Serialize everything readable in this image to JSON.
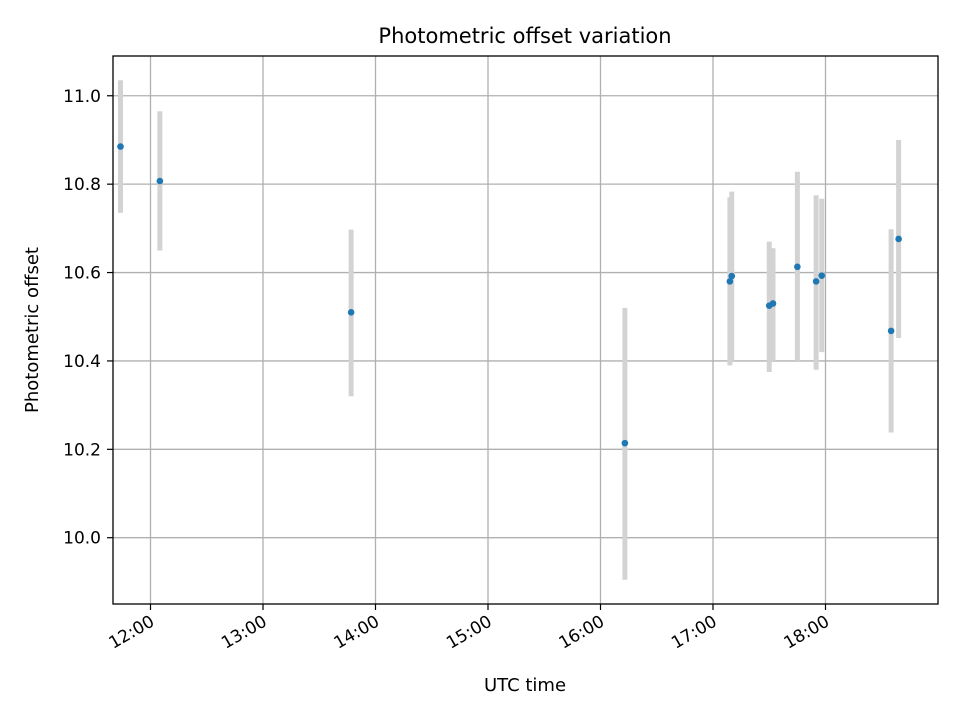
{
  "chart_data": {
    "type": "scatter",
    "title": "Photometric offset variation",
    "xlabel": "UTC time",
    "ylabel": "Photometric offset",
    "x_ticks": [
      "12:00",
      "13:00",
      "14:00",
      "15:00",
      "16:00",
      "17:00",
      "18:00"
    ],
    "y_ticks": [
      "10.0",
      "10.2",
      "10.4",
      "10.6",
      "10.8",
      "11.0"
    ],
    "xlim": [
      "11:40",
      "19:00"
    ],
    "ylim": [
      9.85,
      11.09
    ],
    "grid": true,
    "error_bars": true,
    "marker_color": "#1f77b4",
    "errorbar_color": "#d3d3d3",
    "points": [
      {
        "x": "11:44",
        "y": 10.885,
        "y_low": 10.735,
        "y_high": 11.035
      },
      {
        "x": "12:05",
        "y": 10.807,
        "y_low": 10.65,
        "y_high": 10.965
      },
      {
        "x": "13:47",
        "y": 10.51,
        "y_low": 10.32,
        "y_high": 10.697
      },
      {
        "x": "16:13",
        "y": 10.214,
        "y_low": 9.905,
        "y_high": 10.52
      },
      {
        "x": "17:09",
        "y": 10.58,
        "y_low": 10.39,
        "y_high": 10.77
      },
      {
        "x": "17:10",
        "y": 10.592,
        "y_low": 10.4,
        "y_high": 10.783
      },
      {
        "x": "17:30",
        "y": 10.525,
        "y_low": 10.375,
        "y_high": 10.67
      },
      {
        "x": "17:32",
        "y": 10.53,
        "y_low": 10.4,
        "y_high": 10.655
      },
      {
        "x": "17:45",
        "y": 10.613,
        "y_low": 10.4,
        "y_high": 10.828
      },
      {
        "x": "17:55",
        "y": 10.58,
        "y_low": 10.38,
        "y_high": 10.775
      },
      {
        "x": "17:58",
        "y": 10.593,
        "y_low": 10.42,
        "y_high": 10.767
      },
      {
        "x": "18:35",
        "y": 10.468,
        "y_low": 10.238,
        "y_high": 10.698
      },
      {
        "x": "18:39",
        "y": 10.676,
        "y_low": 10.452,
        "y_high": 10.9
      }
    ]
  }
}
